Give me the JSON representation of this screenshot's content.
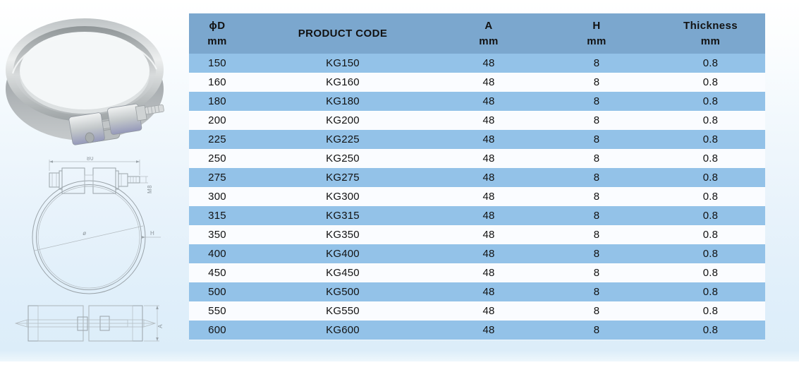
{
  "page": {
    "background_top": "#ffffff",
    "background_bottom": "#dcedf9"
  },
  "left_panel": {
    "photo_subject": "stainless steel locking band clamp",
    "drawing_front": {
      "dim_width": "80",
      "dim_bolt": "M8",
      "dim_diameter": "ø",
      "dim_height": "H"
    },
    "drawing_side": {
      "dim_a": "A"
    }
  },
  "table": {
    "colors": {
      "header_bg": "#7ba7ce",
      "row_blue": "#93c2e8",
      "row_light": "#fafcff",
      "text": "#121212"
    },
    "columns": [
      {
        "label": "ϕD",
        "sub": "mm"
      },
      {
        "label": "PRODUCT CODE",
        "sub": ""
      },
      {
        "label": "A",
        "sub": "mm"
      },
      {
        "label": "H",
        "sub": "mm"
      },
      {
        "label": "Thickness",
        "sub": "mm"
      }
    ],
    "rows": [
      [
        "150",
        "KG150",
        "48",
        "8",
        "0.8"
      ],
      [
        "160",
        "KG160",
        "48",
        "8",
        "0.8"
      ],
      [
        "180",
        "KG180",
        "48",
        "8",
        "0.8"
      ],
      [
        "200",
        "KG200",
        "48",
        "8",
        "0.8"
      ],
      [
        "225",
        "KG225",
        "48",
        "8",
        "0.8"
      ],
      [
        "250",
        "KG250",
        "48",
        "8",
        "0.8"
      ],
      [
        "275",
        "KG275",
        "48",
        "8",
        "0.8"
      ],
      [
        "300",
        "KG300",
        "48",
        "8",
        "0.8"
      ],
      [
        "315",
        "KG315",
        "48",
        "8",
        "0.8"
      ],
      [
        "350",
        "KG350",
        "48",
        "8",
        "0.8"
      ],
      [
        "400",
        "KG400",
        "48",
        "8",
        "0.8"
      ],
      [
        "450",
        "KG450",
        "48",
        "8",
        "0.8"
      ],
      [
        "500",
        "KG500",
        "48",
        "8",
        "0.8"
      ],
      [
        "550",
        "KG550",
        "48",
        "8",
        "0.8"
      ],
      [
        "600",
        "KG600",
        "48",
        "8",
        "0.8"
      ]
    ]
  }
}
